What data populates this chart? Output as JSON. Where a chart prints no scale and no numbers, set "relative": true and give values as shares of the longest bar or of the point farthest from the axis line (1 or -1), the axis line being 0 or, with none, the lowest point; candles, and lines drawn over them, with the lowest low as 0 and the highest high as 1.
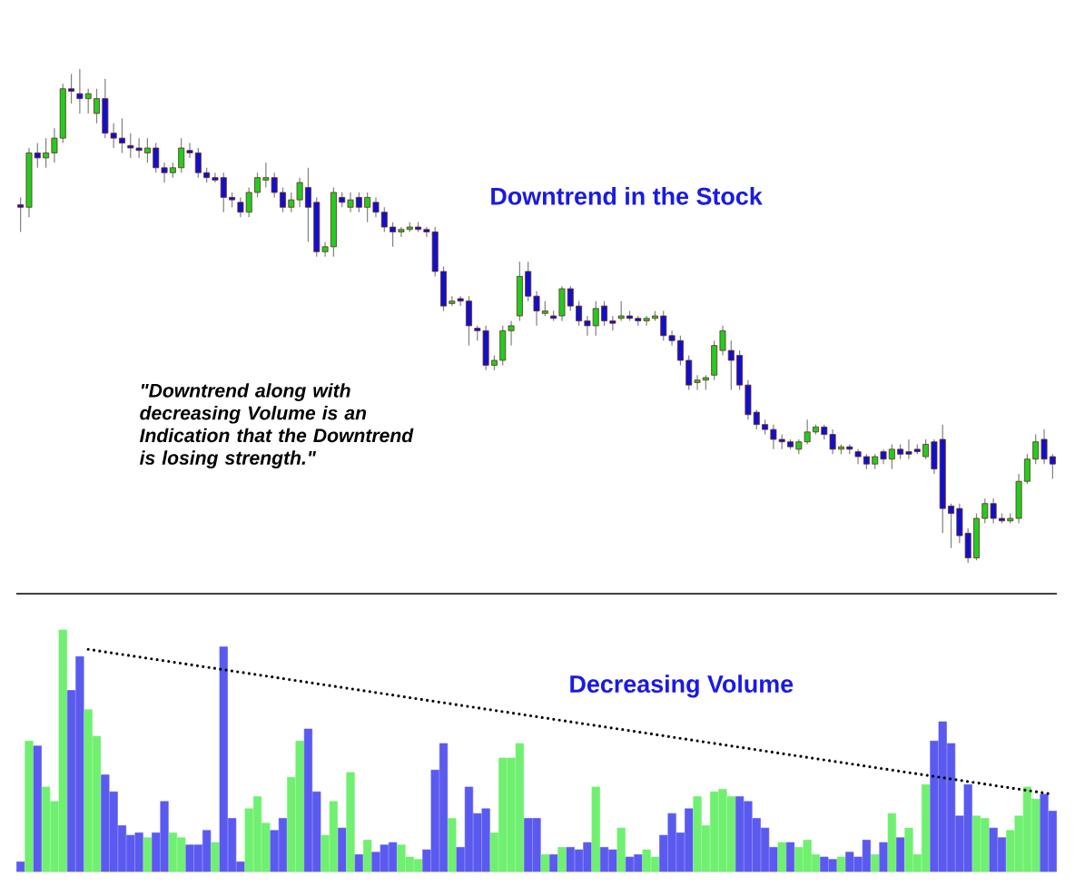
{
  "chart_data": [
    {
      "type": "candlestick",
      "relative": true,
      "annotations": [
        "Downtrend in the Stock",
        "\"Downtrend along with decreasing Volume is an Indication that the Downtrend is losing strength.\""
      ],
      "categories": [
        null,
        null,
        null,
        null,
        null,
        null,
        null,
        null,
        null,
        null,
        null,
        null,
        null,
        null,
        null,
        null,
        null,
        null,
        null,
        null,
        null,
        null,
        null,
        null,
        null,
        null,
        null,
        null,
        null,
        null,
        null,
        null,
        null,
        null,
        null,
        null,
        null,
        null,
        null,
        null,
        null,
        null,
        null,
        null,
        null,
        null,
        null,
        null,
        null,
        null,
        null,
        null,
        null,
        null,
        null,
        null,
        null,
        null,
        null,
        null,
        null,
        null,
        null,
        null,
        null,
        null,
        null,
        null,
        null,
        null,
        null,
        null,
        null,
        null,
        null,
        null,
        null,
        null,
        null,
        null,
        null,
        null,
        null,
        null,
        null,
        null,
        null,
        null,
        null,
        null,
        null,
        null,
        null,
        null,
        null,
        null,
        null,
        null,
        null,
        null,
        null,
        null,
        null,
        null,
        null,
        null,
        null,
        null,
        null,
        null,
        null,
        null,
        null,
        null,
        null,
        null,
        null,
        null,
        null,
        null,
        null,
        null,
        null
      ],
      "ohlc": [
        [
          0.725,
          0.74,
          0.67,
          0.72
        ],
        [
          0.72,
          0.84,
          0.7,
          0.83
        ],
        [
          0.83,
          0.85,
          0.8,
          0.82
        ],
        [
          0.82,
          0.86,
          0.8,
          0.83
        ],
        [
          0.83,
          0.88,
          0.81,
          0.86
        ],
        [
          0.86,
          0.97,
          0.85,
          0.96
        ],
        [
          0.96,
          0.99,
          0.93,
          0.955
        ],
        [
          0.95,
          1.0,
          0.91,
          0.94
        ],
        [
          0.94,
          0.96,
          0.91,
          0.95
        ],
        [
          0.91,
          0.96,
          0.89,
          0.94
        ],
        [
          0.94,
          0.98,
          0.86,
          0.87
        ],
        [
          0.87,
          0.89,
          0.84,
          0.86
        ],
        [
          0.86,
          0.9,
          0.83,
          0.85
        ],
        [
          0.845,
          0.87,
          0.82,
          0.84
        ],
        [
          0.84,
          0.86,
          0.82,
          0.835
        ],
        [
          0.83,
          0.86,
          0.81,
          0.84
        ],
        [
          0.84,
          0.85,
          0.79,
          0.8
        ],
        [
          0.8,
          0.81,
          0.77,
          0.79
        ],
        [
          0.79,
          0.81,
          0.78,
          0.8
        ],
        [
          0.8,
          0.86,
          0.79,
          0.84
        ],
        [
          0.835,
          0.85,
          0.82,
          0.83
        ],
        [
          0.83,
          0.84,
          0.78,
          0.79
        ],
        [
          0.79,
          0.8,
          0.77,
          0.78
        ],
        [
          0.78,
          0.79,
          0.77,
          0.775
        ],
        [
          0.78,
          0.79,
          0.71,
          0.74
        ],
        [
          0.74,
          0.75,
          0.72,
          0.735
        ],
        [
          0.73,
          0.74,
          0.7,
          0.71
        ],
        [
          0.71,
          0.76,
          0.7,
          0.75
        ],
        [
          0.75,
          0.79,
          0.74,
          0.78
        ],
        [
          0.775,
          0.81,
          0.76,
          0.78
        ],
        [
          0.78,
          0.79,
          0.74,
          0.75
        ],
        [
          0.75,
          0.76,
          0.71,
          0.72
        ],
        [
          0.72,
          0.75,
          0.71,
          0.735
        ],
        [
          0.735,
          0.78,
          0.72,
          0.77
        ],
        [
          0.76,
          0.8,
          0.65,
          0.72
        ],
        [
          0.73,
          0.74,
          0.62,
          0.63
        ],
        [
          0.63,
          0.65,
          0.62,
          0.64
        ],
        [
          0.64,
          0.76,
          0.62,
          0.75
        ],
        [
          0.74,
          0.75,
          0.72,
          0.73
        ],
        [
          0.72,
          0.75,
          0.71,
          0.735
        ],
        [
          0.74,
          0.75,
          0.71,
          0.72
        ],
        [
          0.72,
          0.75,
          0.69,
          0.74
        ],
        [
          0.73,
          0.74,
          0.7,
          0.71
        ],
        [
          0.71,
          0.72,
          0.67,
          0.68
        ],
        [
          0.68,
          0.69,
          0.64,
          0.67
        ],
        [
          0.67,
          0.68,
          0.66,
          0.675
        ],
        [
          0.675,
          0.69,
          0.67,
          0.68
        ],
        [
          0.68,
          0.69,
          0.67,
          0.675
        ],
        [
          0.675,
          0.68,
          0.66,
          0.67
        ],
        [
          0.67,
          0.68,
          0.58,
          0.59
        ],
        [
          0.59,
          0.6,
          0.51,
          0.52
        ],
        [
          0.525,
          0.54,
          0.52,
          0.53
        ],
        [
          0.535,
          0.54,
          0.52,
          0.53
        ],
        [
          0.53,
          0.54,
          0.44,
          0.48
        ],
        [
          0.475,
          0.48,
          0.45,
          0.47
        ],
        [
          0.47,
          0.48,
          0.39,
          0.4
        ],
        [
          0.4,
          0.42,
          0.39,
          0.41
        ],
        [
          0.41,
          0.48,
          0.4,
          0.47
        ],
        [
          0.47,
          0.49,
          0.44,
          0.48
        ],
        [
          0.5,
          0.61,
          0.49,
          0.58
        ],
        [
          0.59,
          0.61,
          0.53,
          0.54
        ],
        [
          0.54,
          0.55,
          0.48,
          0.51
        ],
        [
          0.505,
          0.53,
          0.5,
          0.51
        ],
        [
          0.5,
          0.51,
          0.49,
          0.495
        ],
        [
          0.5,
          0.56,
          0.49,
          0.555
        ],
        [
          0.555,
          0.56,
          0.51,
          0.52
        ],
        [
          0.52,
          0.53,
          0.48,
          0.49
        ],
        [
          0.49,
          0.5,
          0.46,
          0.48
        ],
        [
          0.48,
          0.53,
          0.46,
          0.515
        ],
        [
          0.52,
          0.53,
          0.48,
          0.49
        ],
        [
          0.49,
          0.5,
          0.47,
          0.485
        ],
        [
          0.495,
          0.53,
          0.49,
          0.5
        ],
        [
          0.5,
          0.51,
          0.49,
          0.495
        ],
        [
          0.495,
          0.5,
          0.48,
          0.49
        ],
        [
          0.49,
          0.5,
          0.48,
          0.495
        ],
        [
          0.495,
          0.51,
          0.49,
          0.5
        ],
        [
          0.5,
          0.51,
          0.45,
          0.46
        ],
        [
          0.46,
          0.47,
          0.44,
          0.45
        ],
        [
          0.45,
          0.46,
          0.4,
          0.41
        ],
        [
          0.41,
          0.42,
          0.35,
          0.36
        ],
        [
          0.365,
          0.38,
          0.35,
          0.37
        ],
        [
          0.37,
          0.38,
          0.35,
          0.375
        ],
        [
          0.38,
          0.45,
          0.37,
          0.44
        ],
        [
          0.43,
          0.48,
          0.42,
          0.47
        ],
        [
          0.43,
          0.45,
          0.35,
          0.41
        ],
        [
          0.42,
          0.43,
          0.35,
          0.36
        ],
        [
          0.36,
          0.37,
          0.29,
          0.3
        ],
        [
          0.305,
          0.31,
          0.27,
          0.28
        ],
        [
          0.28,
          0.29,
          0.26,
          0.27
        ],
        [
          0.27,
          0.28,
          0.23,
          0.25
        ],
        [
          0.25,
          0.26,
          0.23,
          0.245
        ],
        [
          0.245,
          0.25,
          0.23,
          0.235
        ],
        [
          0.23,
          0.25,
          0.22,
          0.245
        ],
        [
          0.245,
          0.29,
          0.24,
          0.265
        ],
        [
          0.265,
          0.28,
          0.26,
          0.275
        ],
        [
          0.275,
          0.28,
          0.25,
          0.26
        ],
        [
          0.26,
          0.27,
          0.22,
          0.23
        ],
        [
          0.23,
          0.24,
          0.22,
          0.235
        ],
        [
          0.235,
          0.24,
          0.22,
          0.23
        ],
        [
          0.225,
          0.23,
          0.2,
          0.215
        ],
        [
          0.215,
          0.22,
          0.19,
          0.2
        ],
        [
          0.2,
          0.22,
          0.19,
          0.215
        ],
        [
          0.225,
          0.23,
          0.2,
          0.21
        ],
        [
          0.21,
          0.24,
          0.19,
          0.23
        ],
        [
          0.23,
          0.24,
          0.21,
          0.22
        ],
        [
          0.225,
          0.25,
          0.21,
          0.22
        ],
        [
          0.23,
          0.24,
          0.22,
          0.225
        ],
        [
          0.215,
          0.25,
          0.21,
          0.24
        ],
        [
          0.245,
          0.25,
          0.18,
          0.19
        ],
        [
          0.25,
          0.28,
          0.06,
          0.11
        ],
        [
          0.115,
          0.12,
          0.03,
          0.1
        ],
        [
          0.11,
          0.12,
          0.04,
          0.055
        ],
        [
          0.06,
          0.07,
          0,
          0.01
        ],
        [
          0.01,
          0.1,
          0.005,
          0.09
        ],
        [
          0.09,
          0.13,
          0.08,
          0.12
        ],
        [
          0.12,
          0.13,
          0.08,
          0.09
        ],
        [
          0.09,
          0.1,
          0.08,
          0.085
        ],
        [
          0.085,
          0.1,
          0.08,
          0.09
        ],
        [
          0.09,
          0.18,
          0.08,
          0.165
        ],
        [
          0.165,
          0.22,
          0.16,
          0.21
        ],
        [
          0.21,
          0.26,
          0.2,
          0.245
        ],
        [
          0.25,
          0.27,
          0.2,
          0.21
        ],
        [
          0.215,
          0.22,
          0.17,
          0.2
        ]
      ],
      "colors": [
        "#1010cc",
        "#22cc22",
        "#1010cc",
        "#22cc22",
        "#22cc22",
        "#22cc22",
        "#1010cc",
        "#1010cc",
        "#22cc22",
        "#22cc22",
        "#1010cc",
        "#1010cc",
        "#1010cc",
        "#1010cc",
        "#1010cc",
        "#22cc22",
        "#1010cc",
        "#1010cc",
        "#22cc22",
        "#22cc22",
        "#1010cc",
        "#1010cc",
        "#1010cc",
        "#1010cc",
        "#1010cc",
        "#1010cc",
        "#1010cc",
        "#22cc22",
        "#22cc22",
        "#22cc22",
        "#1010cc",
        "#1010cc",
        "#22cc22",
        "#22cc22",
        "#1010cc",
        "#1010cc",
        "#22cc22",
        "#22cc22",
        "#1010cc",
        "#22cc22",
        "#1010cc",
        "#22cc22",
        "#1010cc",
        "#1010cc",
        "#1010cc",
        "#22cc22",
        "#22cc22",
        "#1010cc",
        "#1010cc",
        "#1010cc",
        "#1010cc",
        "#22cc22",
        "#1010cc",
        "#1010cc",
        "#1010cc",
        "#1010cc",
        "#22cc22",
        "#22cc22",
        "#22cc22",
        "#22cc22",
        "#1010cc",
        "#1010cc",
        "#22cc22",
        "#1010cc",
        "#22cc22",
        "#1010cc",
        "#1010cc",
        "#1010cc",
        "#22cc22",
        "#1010cc",
        "#1010cc",
        "#22cc22",
        "#1010cc",
        "#1010cc",
        "#22cc22",
        "#22cc22",
        "#1010cc",
        "#1010cc",
        "#1010cc",
        "#1010cc",
        "#22cc22",
        "#22cc22",
        "#22cc22",
        "#22cc22",
        "#1010cc",
        "#1010cc",
        "#1010cc",
        "#1010cc",
        "#1010cc",
        "#1010cc",
        "#1010cc",
        "#1010cc",
        "#22cc22",
        "#22cc22",
        "#22cc22",
        "#1010cc",
        "#1010cc",
        "#22cc22",
        "#1010cc",
        "#1010cc",
        "#1010cc",
        "#22cc22",
        "#1010cc",
        "#22cc22",
        "#1010cc",
        "#1010cc",
        "#1010cc",
        "#22cc22",
        "#1010cc",
        "#1010cc",
        "#1010cc",
        "#1010cc",
        "#1010cc",
        "#22cc22",
        "#22cc22",
        "#1010cc",
        "#1010cc",
        "#22cc22",
        "#22cc22",
        "#22cc22",
        "#22cc22",
        "#1010cc",
        "#1010cc"
      ]
    },
    {
      "type": "bar",
      "relative": true,
      "annotations": [
        "Decreasing Volume"
      ],
      "categories": [
        null,
        null,
        null,
        null,
        null,
        null,
        null,
        null,
        null,
        null,
        null,
        null,
        null,
        null,
        null,
        null,
        null,
        null,
        null,
        null,
        null,
        null,
        null,
        null,
        null,
        null,
        null,
        null,
        null,
        null,
        null,
        null,
        null,
        null,
        null,
        null,
        null,
        null,
        null,
        null,
        null,
        null,
        null,
        null,
        null,
        null,
        null,
        null,
        null,
        null,
        null,
        null,
        null,
        null,
        null,
        null,
        null,
        null,
        null,
        null,
        null,
        null,
        null,
        null,
        null,
        null,
        null,
        null,
        null,
        null,
        null,
        null,
        null,
        null,
        null,
        null,
        null,
        null,
        null,
        null,
        null,
        null,
        null,
        null,
        null,
        null,
        null,
        null,
        null,
        null,
        null,
        null,
        null,
        null,
        null,
        null,
        null,
        null,
        null,
        null,
        null,
        null,
        null,
        null,
        null,
        null,
        null,
        null,
        null,
        null,
        null,
        null,
        null,
        null,
        null,
        null,
        null,
        null,
        null,
        null,
        null,
        null,
        null
      ],
      "series": [
        {
          "type": "bar",
          "values": [
            0.04,
            0.54,
            0.52,
            0.35,
            0.29,
            1.0,
            0.75,
            0.89,
            0.67,
            0.56,
            0.4,
            0.33,
            0.19,
            0.15,
            0.16,
            0.14,
            0.16,
            0.29,
            0.16,
            0.14,
            0.11,
            0.11,
            0.17,
            0.12,
            0.93,
            0.22,
            0.04,
            0.26,
            0.31,
            0.2,
            0.17,
            0.22,
            0.39,
            0.54,
            0.59,
            0.33,
            0.15,
            0.29,
            0.18,
            0.41,
            0.07,
            0.13,
            0.08,
            0.11,
            0.12,
            0.11,
            0.06,
            0.05,
            0.09,
            0.42,
            0.53,
            0.22,
            0.1,
            0.35,
            0.24,
            0.26,
            0.16,
            0.47,
            0.47,
            0.53,
            0.22,
            0.22,
            0.07,
            0.07,
            0.1,
            0.1,
            0.09,
            0.12,
            0.35,
            0.1,
            0.09,
            0.18,
            0.06,
            0.07,
            0.09,
            0.06,
            0.15,
            0.24,
            0.16,
            0.26,
            0.31,
            0.19,
            0.33,
            0.34,
            0.31,
            0.31,
            0.29,
            0.22,
            0.18,
            0.1,
            0.12,
            0.12,
            0.1,
            0.13,
            0.07,
            0.06,
            0.05,
            0.06,
            0.08,
            0.06,
            0.13,
            0.07,
            0.12,
            0.24,
            0.14,
            0.18,
            0.07,
            0.36,
            0.54,
            0.62,
            0.53,
            0.23,
            0.36,
            0.23,
            0.22,
            0.18,
            0.14,
            0.17,
            0.23,
            0.35,
            0.3,
            0.32,
            0.25
          ],
          "colors": [
            "#5a5af0",
            "#70f070",
            "#5a5af0",
            "#70f070",
            "#70f070",
            "#70f070",
            "#5a5af0",
            "#5a5af0",
            "#70f070",
            "#70f070",
            "#5a5af0",
            "#5a5af0",
            "#5a5af0",
            "#5a5af0",
            "#5a5af0",
            "#70f070",
            "#5a5af0",
            "#5a5af0",
            "#70f070",
            "#70f070",
            "#5a5af0",
            "#5a5af0",
            "#5a5af0",
            "#70f070",
            "#5a5af0",
            "#5a5af0",
            "#5a5af0",
            "#70f070",
            "#70f070",
            "#70f070",
            "#5a5af0",
            "#5a5af0",
            "#70f070",
            "#70f070",
            "#5a5af0",
            "#5a5af0",
            "#70f070",
            "#70f070",
            "#5a5af0",
            "#70f070",
            "#5a5af0",
            "#70f070",
            "#5a5af0",
            "#5a5af0",
            "#5a5af0",
            "#70f070",
            "#70f070",
            "#70f070",
            "#5a5af0",
            "#5a5af0",
            "#5a5af0",
            "#70f070",
            "#5a5af0",
            "#5a5af0",
            "#5a5af0",
            "#5a5af0",
            "#70f070",
            "#70f070",
            "#70f070",
            "#70f070",
            "#5a5af0",
            "#5a5af0",
            "#70f070",
            "#5a5af0",
            "#70f070",
            "#5a5af0",
            "#5a5af0",
            "#5a5af0",
            "#70f070",
            "#5a5af0",
            "#5a5af0",
            "#70f070",
            "#5a5af0",
            "#5a5af0",
            "#70f070",
            "#70f070",
            "#5a5af0",
            "#5a5af0",
            "#5a5af0",
            "#5a5af0",
            "#70f070",
            "#70f070",
            "#70f070",
            "#70f070",
            "#70f070",
            "#5a5af0",
            "#5a5af0",
            "#5a5af0",
            "#5a5af0",
            "#5a5af0",
            "#70f070",
            "#5a5af0",
            "#70f070",
            "#70f070",
            "#70f070",
            "#5a5af0",
            "#5a5af0",
            "#70f070",
            "#5a5af0",
            "#5a5af0",
            "#5a5af0",
            "#70f070",
            "#5a5af0",
            "#70f070",
            "#5a5af0",
            "#70f070",
            "#70f070",
            "#70f070",
            "#5a5af0",
            "#5a5af0",
            "#5a5af0",
            "#5a5af0",
            "#5a5af0",
            "#70f070",
            "#70f070",
            "#5a5af0",
            "#5a5af0",
            "#70f070",
            "#70f070",
            "#70f070",
            "#70f070",
            "#5a5af0",
            "#5a5af0"
          ]
        },
        {
          "type": "line",
          "color": "#000000",
          "line_style": "dotted",
          "values": [
            null,
            null,
            null,
            null,
            null,
            null,
            null,
            null,
            0.92,
            null,
            null,
            null,
            null,
            null,
            null,
            null,
            null,
            null,
            null,
            null,
            null,
            null,
            null,
            null,
            null,
            null,
            null,
            null,
            null,
            null,
            null,
            null,
            null,
            null,
            null,
            null,
            null,
            null,
            null,
            null,
            null,
            null,
            null,
            null,
            null,
            null,
            null,
            null,
            null,
            null,
            null,
            null,
            null,
            null,
            null,
            null,
            null,
            null,
            null,
            null,
            null,
            null,
            null,
            null,
            null,
            null,
            null,
            null,
            null,
            null,
            null,
            null,
            null,
            null,
            null,
            null,
            null,
            null,
            null,
            null,
            null,
            null,
            null,
            null,
            null,
            null,
            null,
            null,
            null,
            null,
            null,
            null,
            null,
            null,
            null,
            null,
            null,
            null,
            null,
            null,
            null,
            null,
            null,
            null,
            null,
            null,
            null,
            null,
            null,
            null,
            null,
            null,
            null,
            null,
            null,
            null,
            null,
            null,
            null,
            null,
            null,
            null,
            0.32
          ]
        }
      ]
    }
  ]
}
